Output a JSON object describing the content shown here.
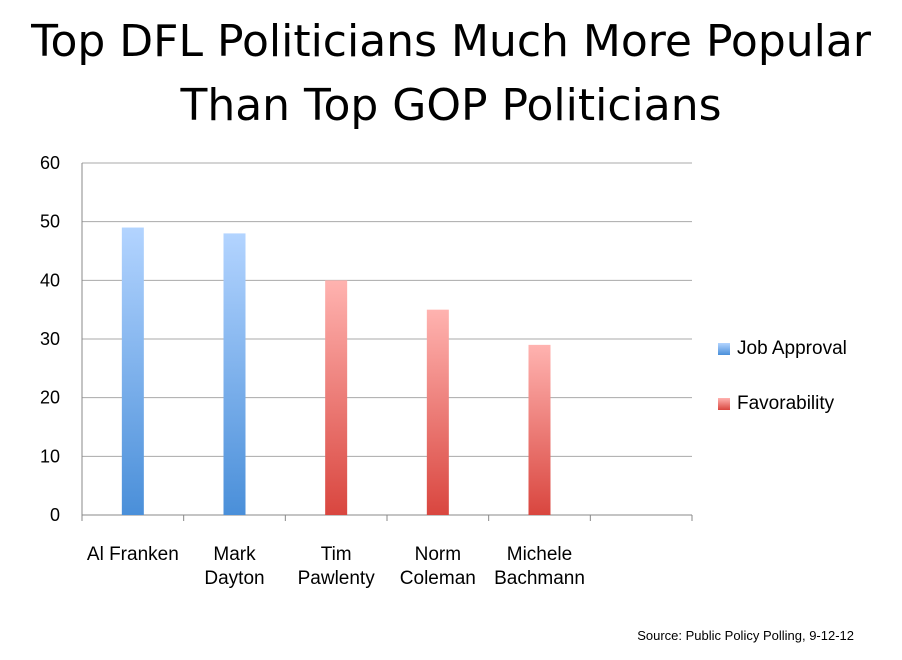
{
  "chart_data": {
    "type": "bar",
    "title_lines": [
      "Top DFL Politicians Much More Popular",
      "Than Top GOP Politicians"
    ],
    "categories": [
      [
        "Al Franken"
      ],
      [
        "Mark",
        "Dayton"
      ],
      [
        "Tim",
        "Pawlenty"
      ],
      [
        "Norm",
        "Coleman"
      ],
      [
        "Michele",
        "Bachmann"
      ],
      [
        ""
      ]
    ],
    "series": [
      {
        "name": "Job Approval",
        "color": "#4a8fd9",
        "color_light": "#b3d4ff",
        "values": [
          49,
          48,
          null,
          null,
          null,
          null
        ]
      },
      {
        "name": "Favorability",
        "color": "#d9463f",
        "color_light": "#ffb3b0",
        "values": [
          null,
          null,
          40,
          35,
          29,
          null
        ]
      }
    ],
    "yticks": [
      0,
      10,
      20,
      30,
      40,
      50,
      60
    ],
    "ylim": [
      0,
      60
    ],
    "grid": true,
    "legend_position": "right"
  },
  "source": "Source:  Public Policy Polling, 9-12-12"
}
